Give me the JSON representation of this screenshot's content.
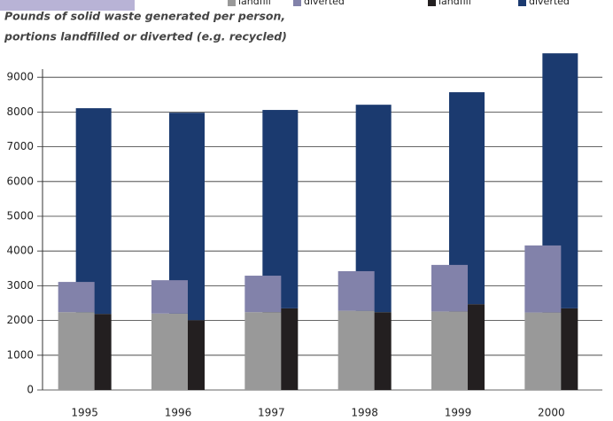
{
  "chart_data": {
    "type": "bar",
    "subtitle": [
      "Pounds of solid waste generated per person,",
      "portions landfilled or diverted (e.g. recycled)"
    ],
    "categories": [
      "1995",
      "1996",
      "1997",
      "1998",
      "1999",
      "2000"
    ],
    "series": [
      {
        "name": "landfill",
        "color": "#999999",
        "stack": "left",
        "values": [
          2240,
          2200,
          2240,
          2280,
          2260,
          2230
        ]
      },
      {
        "name": "diverted",
        "color": "#8282aa",
        "stack": "left",
        "values": [
          870,
          960,
          1050,
          1140,
          1340,
          1930
        ]
      },
      {
        "name": "landfill",
        "color": "#231f20",
        "stack": "right",
        "values": [
          2190,
          2010,
          2350,
          2240,
          2470,
          2350
        ]
      },
      {
        "name": "diverted",
        "color": "#1b3a6f",
        "stack": "right",
        "values": [
          5920,
          5970,
          5710,
          5970,
          6100,
          7340
        ]
      }
    ],
    "ylim": [
      0,
      10000
    ],
    "yticks": [
      0,
      1000,
      2000,
      3000,
      4000,
      5000,
      6000,
      7000,
      8000,
      9000
    ],
    "grid": true
  }
}
